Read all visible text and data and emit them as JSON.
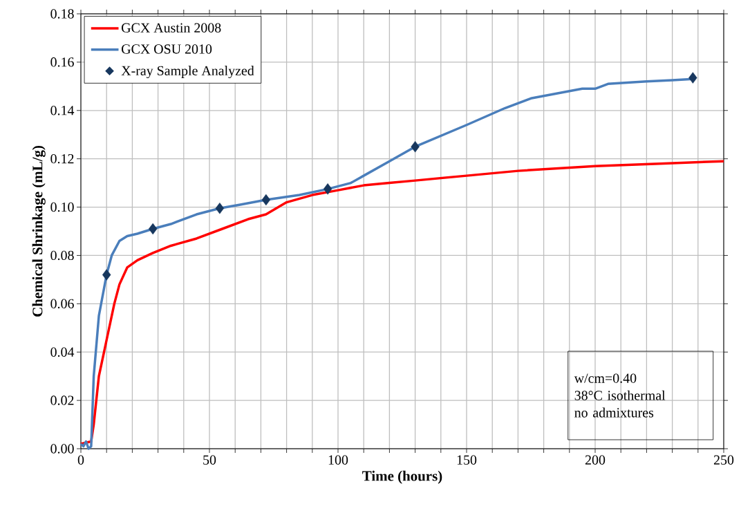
{
  "chart_data": {
    "type": "line",
    "xlabel": "Time (hours)",
    "ylabel": "Chemical Shrinkage (mL/g)",
    "xlim": [
      0,
      250
    ],
    "ylim": [
      0,
      0.18
    ],
    "xticks": [
      0,
      {
        "value": 10,
        "label": null
      },
      {
        "value": 20,
        "label": null
      },
      {
        "value": 30,
        "label": null
      },
      {
        "value": 40,
        "label": null
      },
      50,
      {
        "value": 60,
        "label": null
      },
      {
        "value": 70,
        "label": null
      },
      {
        "value": 80,
        "label": null
      },
      {
        "value": 90,
        "label": null
      },
      100,
      {
        "value": 110,
        "label": null
      },
      {
        "value": 120,
        "label": null
      },
      {
        "value": 130,
        "label": null
      },
      {
        "value": 140,
        "label": null
      },
      150,
      {
        "value": 160,
        "label": null
      },
      {
        "value": 170,
        "label": null
      },
      {
        "value": 180,
        "label": null
      },
      {
        "value": 190,
        "label": null
      },
      200,
      {
        "value": 210,
        "label": null
      },
      {
        "value": 220,
        "label": null
      },
      {
        "value": 230,
        "label": null
      },
      {
        "value": 240,
        "label": null
      },
      250
    ],
    "yticks": [
      {
        "value": 0,
        "label": "0.00"
      },
      {
        "value": 0.02,
        "label": "0.02"
      },
      {
        "value": 0.04,
        "label": "0.04"
      },
      {
        "value": 0.06,
        "label": "0.06"
      },
      {
        "value": 0.08,
        "label": "0.08"
      },
      {
        "value": 0.1,
        "label": "0.10"
      },
      {
        "value": 0.12,
        "label": "0.12"
      },
      {
        "value": 0.14,
        "label": "0.14"
      },
      {
        "value": 0.16,
        "label": "0.16"
      },
      {
        "value": 0.18,
        "label": "0.18"
      }
    ],
    "grid": true,
    "legend": "top left",
    "annotations": [
      "w/cm=0.40",
      "38°C isothermal",
      "no admixtures"
    ],
    "series": [
      {
        "name": "GCX Austin 2008",
        "color": "#ff0000",
        "x": [
          0,
          4,
          5,
          7,
          10,
          13,
          15,
          18,
          22,
          28,
          35,
          45,
          55,
          65,
          72,
          80,
          90,
          100,
          110,
          120,
          130,
          150,
          170,
          200,
          225,
          250
        ],
        "values": [
          0.002,
          0.003,
          0.01,
          0.03,
          0.045,
          0.06,
          0.068,
          0.075,
          0.078,
          0.081,
          0.084,
          0.087,
          0.091,
          0.095,
          0.097,
          0.102,
          0.105,
          0.107,
          0.109,
          0.11,
          0.111,
          0.113,
          0.115,
          0.117,
          0.118,
          0.119
        ]
      },
      {
        "name": "GCX OSU 2010",
        "color": "#4a7ebb",
        "x": [
          0,
          1,
          2,
          3,
          4,
          5,
          7,
          10,
          12,
          15,
          18,
          22,
          28,
          35,
          45,
          54,
          62,
          72,
          85,
          96,
          105,
          110,
          120,
          130,
          150,
          165,
          175,
          185,
          195,
          200,
          205,
          220,
          230,
          238
        ],
        "values": [
          0.002,
          0.001,
          0.003,
          0.0,
          0.001,
          0.03,
          0.055,
          0.072,
          0.08,
          0.086,
          0.088,
          0.089,
          0.091,
          0.093,
          0.097,
          0.0995,
          0.101,
          0.103,
          0.105,
          0.1075,
          0.11,
          0.113,
          0.119,
          0.125,
          0.134,
          0.141,
          0.145,
          0.147,
          0.149,
          0.149,
          0.151,
          0.152,
          0.1525,
          0.153
        ]
      },
      {
        "name": "X-ray Sample Analyzed",
        "type": "scatter",
        "marker": "diamond",
        "color": "#17375e",
        "x": [
          10,
          28,
          54,
          72,
          96,
          130,
          238
        ],
        "values": [
          0.072,
          0.091,
          0.0995,
          0.103,
          0.1075,
          0.125,
          0.1535
        ]
      }
    ]
  }
}
